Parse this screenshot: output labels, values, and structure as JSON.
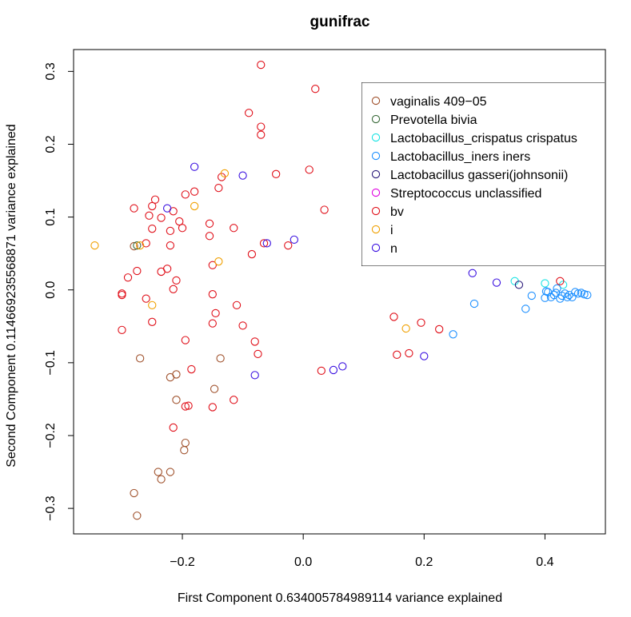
{
  "chart_data": {
    "type": "scatter",
    "title": "gunifrac",
    "xlabel": "First Component 0.634005784989114 variance explained",
    "ylabel": "Second Component 0.114669235568871 variance explained",
    "xlim": [
      -0.38,
      0.5
    ],
    "ylim": [
      -0.335,
      0.33
    ],
    "x_ticks": [
      -0.2,
      0.0,
      0.2,
      0.4
    ],
    "x_tick_labels": [
      "−0.2",
      "0.0",
      "0.2",
      "0.4"
    ],
    "y_ticks": [
      -0.3,
      -0.2,
      -0.1,
      0.0,
      0.1,
      0.2,
      0.3
    ],
    "y_tick_labels": [
      "−0.3",
      "−0.2",
      "−0.1",
      "0.0",
      "0.1",
      "0.2",
      "0.3"
    ],
    "grid": false,
    "legend_position": "top-right",
    "series": [
      {
        "name": "vaginalis 409−05",
        "color": "#a0522d",
        "points": [
          [
            -0.27,
            -0.094
          ],
          [
            -0.28,
            -0.279
          ],
          [
            -0.275,
            -0.31
          ],
          [
            -0.24,
            -0.25
          ],
          [
            -0.235,
            -0.26
          ],
          [
            -0.22,
            -0.25
          ],
          [
            -0.22,
            -0.12
          ],
          [
            -0.21,
            -0.116
          ],
          [
            -0.21,
            -0.151
          ],
          [
            -0.195,
            -0.21
          ],
          [
            -0.197,
            -0.22
          ],
          [
            -0.147,
            -0.136
          ],
          [
            -0.137,
            -0.094
          ],
          [
            -0.28,
            0.06
          ]
        ]
      },
      {
        "name": "Prevotella bivia",
        "color": "#3a6b3a",
        "points": [
          [
            -0.275,
            0.061
          ]
        ]
      },
      {
        "name": "Lactobacillus_crispatus crispatus",
        "color": "#17e3e3",
        "points": [
          [
            0.35,
            0.012
          ],
          [
            0.4,
            0.009
          ],
          [
            0.43,
            0.007
          ]
        ]
      },
      {
        "name": "Lactobacillus_iners iners",
        "color": "#1e90ff",
        "points": [
          [
            0.222,
            0.04
          ],
          [
            0.248,
            -0.061
          ],
          [
            0.283,
            -0.019
          ],
          [
            0.368,
            -0.026
          ],
          [
            0.378,
            -0.008
          ],
          [
            0.4,
            -0.011
          ],
          [
            0.405,
            -0.003
          ],
          [
            0.41,
            -0.01
          ],
          [
            0.415,
            -0.007
          ],
          [
            0.418,
            -0.004
          ],
          [
            0.42,
            0.002
          ],
          [
            0.425,
            -0.012
          ],
          [
            0.428,
            -0.008
          ],
          [
            0.433,
            -0.005
          ],
          [
            0.44,
            -0.007
          ],
          [
            0.445,
            -0.01
          ],
          [
            0.45,
            -0.003
          ],
          [
            0.455,
            -0.005
          ],
          [
            0.46,
            -0.004
          ],
          [
            0.465,
            -0.006
          ],
          [
            0.47,
            -0.007
          ],
          [
            0.402,
            -0.002
          ],
          [
            0.437,
            -0.01
          ]
        ]
      },
      {
        "name": "Lactobacillus gasseri(johnsonii)",
        "color": "#2a1a7a",
        "points": [
          [
            0.357,
            0.007
          ]
        ]
      },
      {
        "name": "Streptococcus unclassified",
        "color": "#e000e0",
        "points": [
          [
            0.3,
            0.039
          ]
        ]
      },
      {
        "name": "bv",
        "color": "#e0101a",
        "points": [
          [
            -0.07,
            0.309
          ],
          [
            0.02,
            0.276
          ],
          [
            -0.09,
            0.243
          ],
          [
            -0.07,
            0.224
          ],
          [
            -0.07,
            0.213
          ],
          [
            -0.045,
            0.159
          ],
          [
            0.01,
            0.165
          ],
          [
            0.035,
            0.11
          ],
          [
            -0.025,
            0.061
          ],
          [
            -0.065,
            0.064
          ],
          [
            -0.085,
            0.049
          ],
          [
            -0.115,
            0.085
          ],
          [
            -0.135,
            0.155
          ],
          [
            -0.14,
            0.14
          ],
          [
            -0.155,
            0.091
          ],
          [
            -0.155,
            0.074
          ],
          [
            -0.15,
            0.034
          ],
          [
            -0.18,
            0.135
          ],
          [
            -0.195,
            0.131
          ],
          [
            -0.2,
            0.085
          ],
          [
            -0.205,
            0.094
          ],
          [
            -0.215,
            0.108
          ],
          [
            -0.22,
            0.081
          ],
          [
            -0.22,
            0.061
          ],
          [
            -0.225,
            0.029
          ],
          [
            -0.235,
            0.025
          ],
          [
            -0.215,
            0.001
          ],
          [
            -0.21,
            0.013
          ],
          [
            -0.235,
            0.099
          ],
          [
            -0.245,
            0.124
          ],
          [
            -0.25,
            0.115
          ],
          [
            -0.25,
            0.084
          ],
          [
            -0.255,
            0.102
          ],
          [
            -0.26,
            0.064
          ],
          [
            -0.28,
            0.112
          ],
          [
            -0.275,
            0.026
          ],
          [
            -0.29,
            0.017
          ],
          [
            -0.3,
            -0.005
          ],
          [
            -0.3,
            -0.007
          ],
          [
            -0.3,
            -0.055
          ],
          [
            -0.26,
            -0.012
          ],
          [
            -0.25,
            -0.044
          ],
          [
            -0.195,
            -0.069
          ],
          [
            -0.185,
            -0.109
          ],
          [
            -0.19,
            -0.159
          ],
          [
            -0.195,
            -0.16
          ],
          [
            -0.215,
            -0.189
          ],
          [
            -0.15,
            -0.161
          ],
          [
            -0.15,
            -0.006
          ],
          [
            -0.145,
            -0.032
          ],
          [
            -0.15,
            -0.046
          ],
          [
            -0.11,
            -0.021
          ],
          [
            -0.1,
            -0.049
          ],
          [
            -0.08,
            -0.071
          ],
          [
            -0.075,
            -0.088
          ],
          [
            -0.115,
            -0.151
          ],
          [
            0.03,
            -0.111
          ],
          [
            0.15,
            -0.037
          ],
          [
            0.155,
            -0.089
          ],
          [
            0.175,
            -0.087
          ],
          [
            0.195,
            -0.045
          ],
          [
            0.225,
            -0.054
          ],
          [
            0.425,
            0.012
          ]
        ]
      },
      {
        "name": "i",
        "color": "#f0a000",
        "points": [
          [
            -0.345,
            0.061
          ],
          [
            -0.27,
            0.061
          ],
          [
            -0.25,
            -0.021
          ],
          [
            -0.18,
            0.115
          ],
          [
            -0.13,
            0.16
          ],
          [
            -0.14,
            0.039
          ],
          [
            0.17,
            -0.053
          ]
        ]
      },
      {
        "name": "n",
        "color": "#3a10e0",
        "points": [
          [
            -0.18,
            0.169
          ],
          [
            -0.225,
            0.112
          ],
          [
            -0.1,
            0.157
          ],
          [
            -0.06,
            0.064
          ],
          [
            -0.015,
            0.069
          ],
          [
            -0.08,
            -0.117
          ],
          [
            0.05,
            -0.11
          ],
          [
            0.065,
            -0.105
          ],
          [
            0.2,
            -0.091
          ],
          [
            0.28,
            0.023
          ],
          [
            0.32,
            0.01
          ]
        ]
      }
    ]
  }
}
